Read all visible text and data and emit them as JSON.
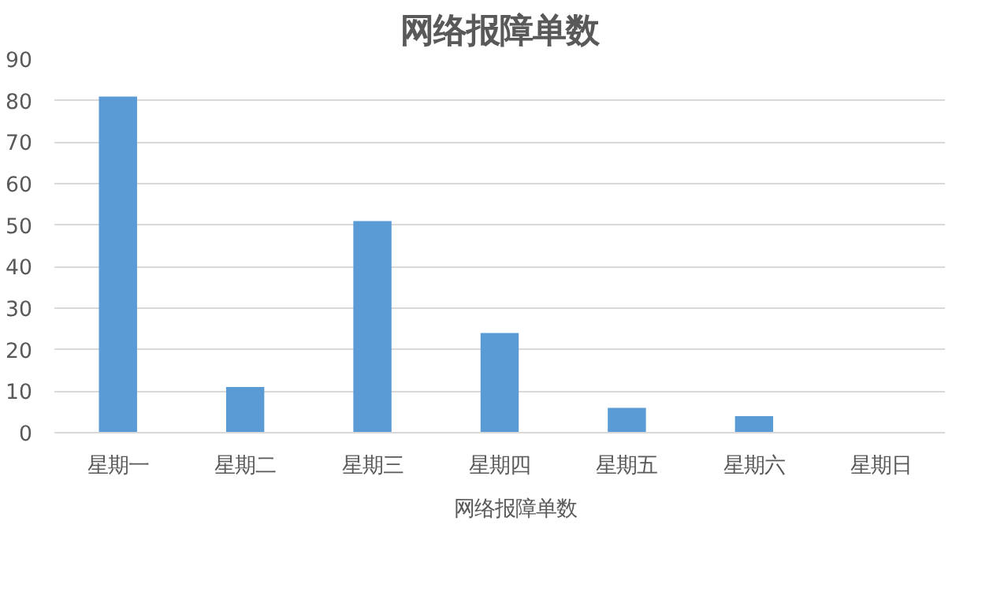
{
  "chart_data": {
    "type": "bar",
    "title": "网络报障单数",
    "categories": [
      "星期一",
      "星期二",
      "星期三",
      "星期四",
      "星期五",
      "星期六",
      "星期日"
    ],
    "series": [
      {
        "name": "网络报障单数",
        "color": "#5b9bd5",
        "values": [
          81,
          11,
          51,
          24,
          6,
          4,
          0
        ]
      }
    ],
    "ylim": [
      0,
      90
    ],
    "yticks": [
      0,
      10,
      20,
      30,
      40,
      50,
      60,
      70,
      80,
      90
    ],
    "grid": "y",
    "legend": "bottom"
  }
}
